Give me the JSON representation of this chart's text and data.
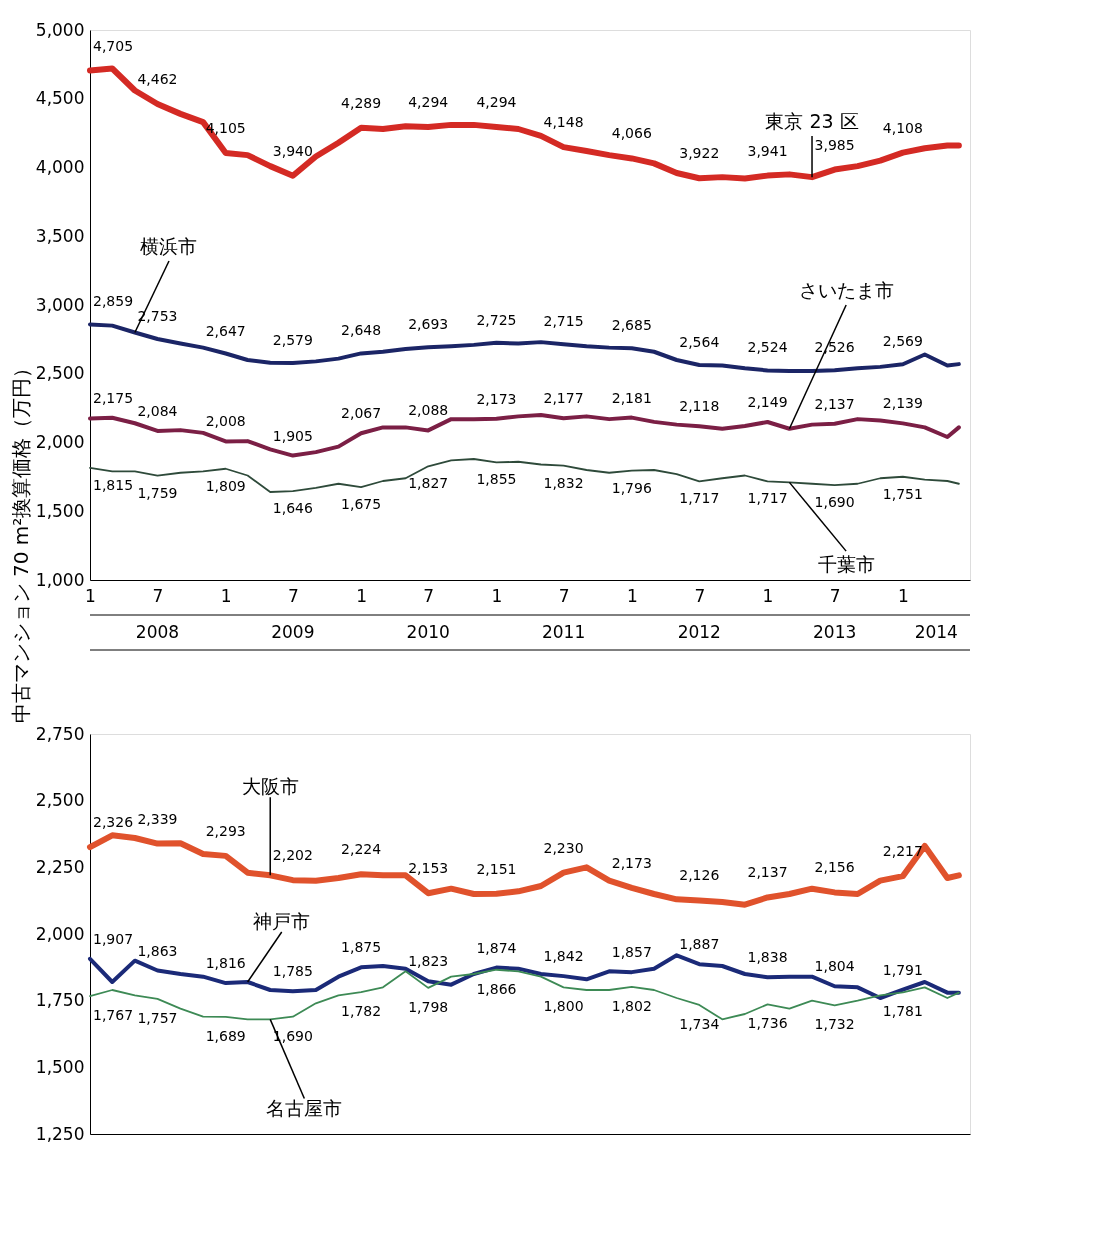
{
  "chart_data": [
    {
      "type": "line",
      "ylabel": "中古マンション 70 m²換算価格（万円）",
      "x": [
        "2008-01-01",
        "2008-03-01",
        "2008-05-01",
        "2008-07-01",
        "2008-09-01",
        "2008-11-01",
        "2009-01-01",
        "2009-03-01",
        "2009-05-01",
        "2009-07-01",
        "2009-09-01",
        "2009-11-01",
        "2010-01-01",
        "2010-03-01",
        "2010-05-01",
        "2010-07-01",
        "2010-09-01",
        "2010-11-01",
        "2011-01-01",
        "2011-03-01",
        "2011-05-01",
        "2011-07-01",
        "2011-09-01",
        "2011-11-01",
        "2012-01-01",
        "2012-03-01",
        "2012-05-01",
        "2012-07-01",
        "2012-09-01",
        "2012-11-01",
        "2013-01-01",
        "2013-03-01",
        "2013-05-01",
        "2013-07-01",
        "2013-09-01",
        "2013-11-01",
        "2014-01-01",
        "2014-03-01",
        "2014-05-01",
        "2014-06-01"
      ],
      "xlim": [
        "2008-01-01",
        "2014-07-01"
      ],
      "xticks": [
        {
          "value": "2008-01-01",
          "label": "1"
        },
        {
          "value": "2008-07-01",
          "label": "7"
        },
        {
          "value": "2009-01-01",
          "label": "1"
        },
        {
          "value": "2009-07-01",
          "label": "7"
        },
        {
          "value": "2010-01-01",
          "label": "1"
        },
        {
          "value": "2010-07-01",
          "label": "7"
        },
        {
          "value": "2011-01-01",
          "label": "1"
        },
        {
          "value": "2011-07-01",
          "label": "7"
        },
        {
          "value": "2012-01-01",
          "label": "1"
        },
        {
          "value": "2012-07-01",
          "label": "7"
        },
        {
          "value": "2013-01-01",
          "label": "1"
        },
        {
          "value": "2013-07-01",
          "label": "7"
        },
        {
          "value": "2014-01-01",
          "label": "1"
        }
      ],
      "x2lim": [
        "2008-01-01",
        "2014-07-01"
      ],
      "x2ticks": [
        {
          "value": "2008-07-01",
          "label": "2008"
        },
        {
          "value": "2009-07-01",
          "label": "2009"
        },
        {
          "value": "2010-07-01",
          "label": "2010"
        },
        {
          "value": "2011-07-01",
          "label": "2011"
        },
        {
          "value": "2012-07-01",
          "label": "2012"
        },
        {
          "value": "2013-07-01",
          "label": "2013"
        },
        {
          "value": "2014-04-01",
          "label": "2014"
        }
      ],
      "ylim": [
        1000,
        5000
      ],
      "yticks": [
        {
          "value": 1000,
          "label": "1,000"
        },
        {
          "value": 1500,
          "label": "1,500"
        },
        {
          "value": 2000,
          "label": "2,000"
        },
        {
          "value": 2500,
          "label": "2,500"
        },
        {
          "value": 3000,
          "label": "3,000"
        },
        {
          "value": 3500,
          "label": "3,500"
        },
        {
          "value": 4000,
          "label": "4,000"
        },
        {
          "value": 4500,
          "label": "4,500"
        },
        {
          "value": 5000,
          "label": "5,000"
        }
      ],
      "series": [
        {
          "name": "東京 23 区",
          "color": "#d42a24",
          "values": [
            4705,
            4720,
            4560,
            4462,
            4390,
            4330,
            4105,
            4090,
            4010,
            3940,
            4080,
            4180,
            4289,
            4280,
            4300,
            4294,
            4310,
            4310,
            4294,
            4280,
            4230,
            4148,
            4120,
            4090,
            4066,
            4030,
            3960,
            3922,
            3930,
            3920,
            3941,
            3950,
            3930,
            3985,
            4010,
            4050,
            4108,
            4140,
            4160,
            4160
          ],
          "value_labels": [
            "4,705",
            null,
            null,
            "4,462",
            null,
            null,
            "4,105",
            null,
            null,
            "3,940",
            null,
            null,
            "4,289",
            null,
            null,
            "4,294",
            null,
            null,
            "4,294",
            null,
            null,
            "4,148",
            null,
            null,
            "4,066",
            null,
            null,
            "3,922",
            null,
            null,
            "3,941",
            null,
            null,
            "3,985",
            null,
            null,
            "4,108",
            null,
            null,
            null
          ]
        },
        {
          "name": "横浜市",
          "color": "#1b2566",
          "values": [
            2859,
            2850,
            2800,
            2753,
            2720,
            2690,
            2647,
            2600,
            2580,
            2579,
            2590,
            2610,
            2648,
            2660,
            2680,
            2693,
            2700,
            2710,
            2725,
            2720,
            2730,
            2715,
            2700,
            2690,
            2685,
            2660,
            2600,
            2564,
            2560,
            2540,
            2524,
            2520,
            2520,
            2526,
            2540,
            2550,
            2569,
            2640,
            2560,
            2570
          ],
          "value_labels": [
            "2,859",
            null,
            null,
            "2,753",
            null,
            null,
            "2,647",
            null,
            null,
            "2,579",
            null,
            null,
            "2,648",
            null,
            null,
            "2,693",
            null,
            null,
            "2,725",
            null,
            null,
            "2,715",
            null,
            null,
            "2,685",
            null,
            null,
            "2,564",
            null,
            null,
            "2,524",
            null,
            null,
            "2,526",
            null,
            null,
            "2,569",
            null,
            null,
            null
          ]
        },
        {
          "name": "さいたま市",
          "color": "#7b1f45",
          "values": [
            2175,
            2180,
            2140,
            2084,
            2090,
            2070,
            2008,
            2010,
            1950,
            1905,
            1930,
            1970,
            2067,
            2110,
            2110,
            2088,
            2170,
            2170,
            2173,
            2190,
            2200,
            2177,
            2190,
            2170,
            2181,
            2150,
            2130,
            2118,
            2100,
            2120,
            2149,
            2100,
            2130,
            2137,
            2170,
            2160,
            2139,
            2110,
            2040,
            2110
          ],
          "value_labels": [
            "2,175",
            null,
            null,
            "2,084",
            null,
            null,
            "2,008",
            null,
            null,
            "1,905",
            null,
            null,
            "2,067",
            null,
            null,
            "2,088",
            null,
            null,
            "2,173",
            null,
            null,
            "2,177",
            null,
            null,
            "2,181",
            null,
            null,
            "2,118",
            null,
            null,
            "2,149",
            null,
            null,
            "2,137",
            null,
            null,
            "2,139",
            null,
            null,
            null
          ]
        },
        {
          "name": "千葉市",
          "color": "#2e4a3a",
          "values": [
            1815,
            1790,
            1790,
            1759,
            1780,
            1790,
            1809,
            1760,
            1640,
            1646,
            1670,
            1700,
            1675,
            1720,
            1740,
            1827,
            1870,
            1880,
            1855,
            1860,
            1840,
            1832,
            1800,
            1780,
            1796,
            1800,
            1770,
            1717,
            1740,
            1760,
            1717,
            1710,
            1700,
            1690,
            1700,
            1740,
            1751,
            1730,
            1720,
            1700
          ],
          "value_labels": [
            "1,815",
            null,
            null,
            "1,759",
            null,
            null,
            "1,809",
            null,
            null,
            "1,646",
            null,
            null,
            "1,675",
            null,
            null,
            "1,827",
            null,
            null,
            "1,855",
            null,
            null,
            "1,832",
            null,
            null,
            "1,796",
            null,
            null,
            "1,717",
            null,
            null,
            "1,717",
            null,
            null,
            "1,690",
            null,
            null,
            "1,751",
            null,
            null,
            null
          ]
        }
      ]
    },
    {
      "type": "line",
      "tick_labels": "y",
      "x": [
        "2008-01-01",
        "2008-03-01",
        "2008-05-01",
        "2008-07-01",
        "2008-09-01",
        "2008-11-01",
        "2009-01-01",
        "2009-03-01",
        "2009-05-01",
        "2009-07-01",
        "2009-09-01",
        "2009-11-01",
        "2010-01-01",
        "2010-03-01",
        "2010-05-01",
        "2010-07-01",
        "2010-09-01",
        "2010-11-01",
        "2011-01-01",
        "2011-03-01",
        "2011-05-01",
        "2011-07-01",
        "2011-09-01",
        "2011-11-01",
        "2012-01-01",
        "2012-03-01",
        "2012-05-01",
        "2012-07-01",
        "2012-09-01",
        "2012-11-01",
        "2013-01-01",
        "2013-03-01",
        "2013-05-01",
        "2013-07-01",
        "2013-09-01",
        "2013-11-01",
        "2014-01-01",
        "2014-03-01",
        "2014-05-01",
        "2014-06-01"
      ],
      "xlim": [
        "2008-01-01",
        "2014-07-01"
      ],
      "ylim": [
        1250,
        2750
      ],
      "yticks": [
        {
          "value": 1250,
          "label": "1,250"
        },
        {
          "value": 1500,
          "label": "1,500"
        },
        {
          "value": 1750,
          "label": "1,750"
        },
        {
          "value": 2000,
          "label": "2,000"
        },
        {
          "value": 2250,
          "label": "2,250"
        },
        {
          "value": 2500,
          "label": "2,500"
        },
        {
          "value": 2750,
          "label": "2,750"
        }
      ],
      "series": [
        {
          "name": "大阪市",
          "color": "#e0522c",
          "values": [
            2326,
            2370,
            2360,
            2339,
            2340,
            2300,
            2293,
            2230,
            2220,
            2202,
            2200,
            2210,
            2224,
            2220,
            2220,
            2153,
            2170,
            2150,
            2151,
            2160,
            2180,
            2230,
            2250,
            2200,
            2173,
            2150,
            2130,
            2126,
            2120,
            2110,
            2137,
            2150,
            2170,
            2156,
            2150,
            2200,
            2217,
            2330,
            2210,
            2220
          ],
          "value_labels": [
            "2,326",
            null,
            null,
            "2,339",
            null,
            null,
            "2,293",
            null,
            null,
            "2,202",
            null,
            null,
            "2,224",
            null,
            null,
            "2,153",
            null,
            null,
            "2,151",
            null,
            null,
            "2,230",
            null,
            null,
            "2,173",
            null,
            null,
            "2,126",
            null,
            null,
            "2,137",
            null,
            null,
            "2,156",
            null,
            null,
            "2,217",
            null,
            null,
            null
          ]
        },
        {
          "name": "神戸市",
          "color": "#1b2a78",
          "values": [
            1907,
            1820,
            1900,
            1863,
            1850,
            1840,
            1816,
            1820,
            1790,
            1785,
            1790,
            1840,
            1875,
            1880,
            1870,
            1823,
            1810,
            1850,
            1874,
            1870,
            1850,
            1842,
            1830,
            1860,
            1857,
            1870,
            1920,
            1887,
            1880,
            1850,
            1838,
            1840,
            1840,
            1804,
            1800,
            1760,
            1791,
            1820,
            1780,
            1780
          ],
          "value_labels": [
            "1,907",
            null,
            null,
            "1,863",
            null,
            null,
            "1,816",
            null,
            null,
            "1,785",
            null,
            null,
            "1,875",
            null,
            null,
            "1,823",
            null,
            null,
            "1,874",
            null,
            null,
            "1,842",
            null,
            null,
            "1,857",
            null,
            null,
            "1,887",
            null,
            null,
            "1,838",
            null,
            null,
            "1,804",
            null,
            null,
            "1,791",
            null,
            null,
            null
          ]
        },
        {
          "name": "名古屋市",
          "color": "#3d8a55",
          "values": [
            1767,
            1790,
            1770,
            1757,
            1720,
            1690,
            1689,
            1680,
            1680,
            1690,
            1740,
            1770,
            1782,
            1800,
            1860,
            1798,
            1840,
            1850,
            1866,
            1860,
            1840,
            1800,
            1790,
            1790,
            1802,
            1790,
            1760,
            1734,
            1680,
            1700,
            1736,
            1720,
            1750,
            1732,
            1750,
            1770,
            1781,
            1800,
            1760,
            1780
          ],
          "value_labels": [
            "1,767",
            null,
            null,
            "1,757",
            null,
            null,
            "1,689",
            null,
            null,
            "1,690",
            null,
            null,
            "1,782",
            null,
            null,
            "1,798",
            null,
            null,
            "1,866",
            null,
            null,
            "1,800",
            null,
            null,
            "1,802",
            null,
            null,
            "1,734",
            null,
            null,
            "1,736",
            null,
            null,
            "1,732",
            null,
            null,
            "1,781",
            null,
            null,
            null
          ]
        }
      ]
    }
  ]
}
